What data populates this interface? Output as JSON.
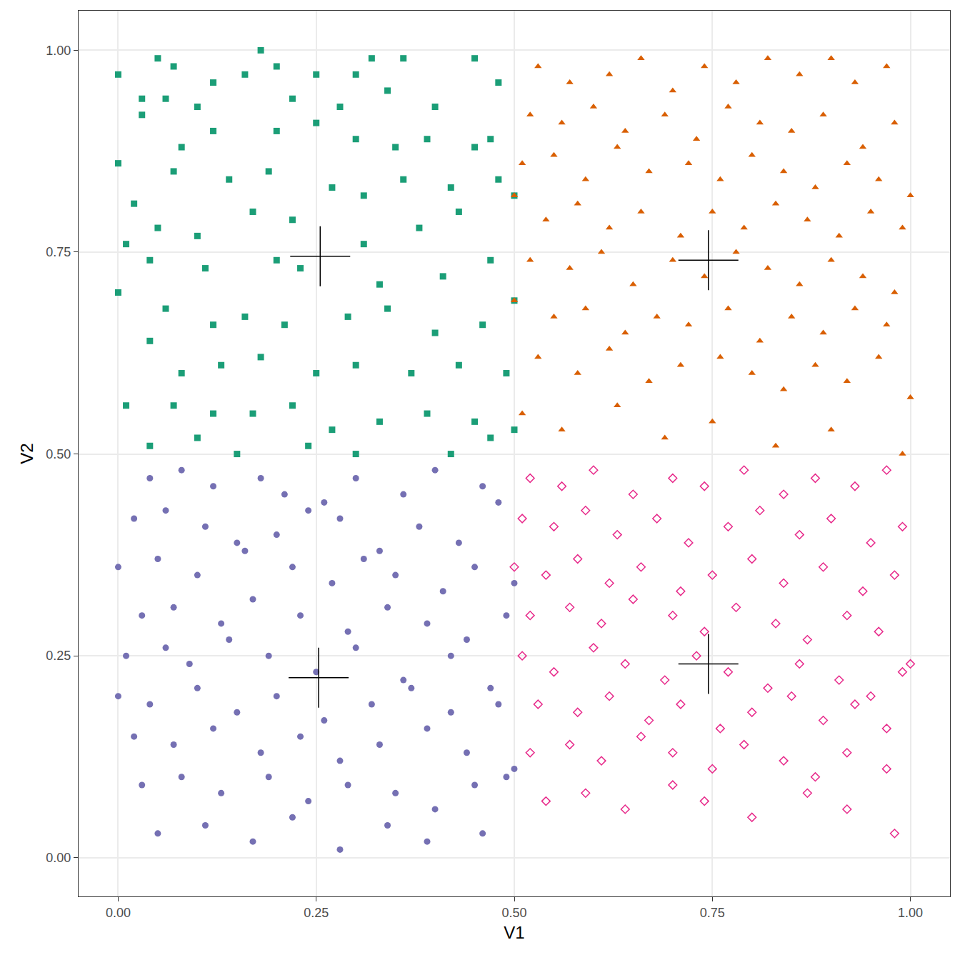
{
  "chart_data": {
    "type": "scatter",
    "x_label": "V1",
    "y_label": "V2",
    "xlim": [
      -0.05,
      1.05
    ],
    "ylim": [
      -0.048,
      1.049
    ],
    "xticks": [
      {
        "value": 0,
        "label": "0.00"
      },
      {
        "value": 0.25,
        "label": "0.25"
      },
      {
        "value": 0.5,
        "label": "0.50"
      },
      {
        "value": 0.75,
        "label": "0.75"
      },
      {
        "value": 1,
        "label": "1.00"
      }
    ],
    "yticks": [
      {
        "value": 0,
        "label": "0.00"
      },
      {
        "value": 0.25,
        "label": "0.25"
      },
      {
        "value": 0.5,
        "label": "0.50"
      },
      {
        "value": 0.75,
        "label": "0.75"
      },
      {
        "value": 1,
        "label": "1.00"
      }
    ],
    "grid": true,
    "series": [
      {
        "color": "#1b9e77",
        "marker": "square",
        "x": [
          0.0,
          0.05,
          0.07,
          0.12,
          0.18,
          0.2,
          0.25,
          0.3,
          0.32,
          0.36,
          0.45,
          0.48,
          0.03,
          0.06,
          0.1,
          0.16,
          0.22,
          0.28,
          0.34,
          0.4,
          0.03,
          0.08,
          0.12,
          0.2,
          0.25,
          0.3,
          0.35,
          0.39,
          0.45,
          0.47,
          0.0,
          0.07,
          0.14,
          0.19,
          0.27,
          0.31,
          0.36,
          0.42,
          0.48,
          0.02,
          0.05,
          0.1,
          0.17,
          0.22,
          0.31,
          0.38,
          0.43,
          0.5,
          0.01,
          0.04,
          0.11,
          0.2,
          0.23,
          0.33,
          0.41,
          0.47,
          0.0,
          0.06,
          0.12,
          0.16,
          0.21,
          0.29,
          0.34,
          0.4,
          0.46,
          0.5,
          0.04,
          0.08,
          0.13,
          0.18,
          0.25,
          0.3,
          0.37,
          0.43,
          0.49,
          0.01,
          0.07,
          0.12,
          0.17,
          0.22,
          0.27,
          0.33,
          0.39,
          0.45,
          0.5,
          0.04,
          0.1,
          0.15,
          0.24,
          0.3,
          0.42,
          0.47
        ],
        "y": [
          0.97,
          0.99,
          0.98,
          0.96,
          1.0,
          0.98,
          0.97,
          0.97,
          0.99,
          0.99,
          0.99,
          0.96,
          0.94,
          0.94,
          0.93,
          0.97,
          0.94,
          0.93,
          0.95,
          0.93,
          0.92,
          0.88,
          0.9,
          0.9,
          0.91,
          0.89,
          0.88,
          0.89,
          0.88,
          0.89,
          0.86,
          0.85,
          0.84,
          0.85,
          0.83,
          0.82,
          0.84,
          0.83,
          0.84,
          0.81,
          0.78,
          0.77,
          0.8,
          0.79,
          0.76,
          0.78,
          0.8,
          0.82,
          0.76,
          0.74,
          0.73,
          0.74,
          0.73,
          0.71,
          0.72,
          0.74,
          0.7,
          0.68,
          0.66,
          0.67,
          0.66,
          0.67,
          0.68,
          0.65,
          0.66,
          0.69,
          0.64,
          0.6,
          0.61,
          0.62,
          0.6,
          0.61,
          0.6,
          0.61,
          0.6,
          0.56,
          0.56,
          0.55,
          0.55,
          0.56,
          0.53,
          0.54,
          0.55,
          0.54,
          0.53,
          0.51,
          0.52,
          0.5,
          0.51,
          0.5,
          0.5,
          0.52
        ]
      },
      {
        "color": "#d95f02",
        "marker": "triangle",
        "x": [
          0.53,
          0.57,
          0.62,
          0.66,
          0.7,
          0.74,
          0.78,
          0.82,
          0.86,
          0.9,
          0.93,
          0.97,
          0.52,
          0.56,
          0.6,
          0.64,
          0.69,
          0.73,
          0.77,
          0.81,
          0.85,
          0.89,
          0.94,
          0.98,
          0.51,
          0.55,
          0.59,
          0.63,
          0.67,
          0.72,
          0.76,
          0.8,
          0.84,
          0.88,
          0.92,
          0.96,
          1.0,
          0.5,
          0.54,
          0.58,
          0.62,
          0.66,
          0.71,
          0.75,
          0.79,
          0.83,
          0.87,
          0.91,
          0.95,
          0.99,
          0.52,
          0.57,
          0.61,
          0.65,
          0.7,
          0.74,
          0.78,
          0.82,
          0.86,
          0.9,
          0.94,
          0.98,
          0.5,
          0.55,
          0.59,
          0.64,
          0.68,
          0.72,
          0.77,
          0.81,
          0.85,
          0.89,
          0.93,
          0.97,
          0.53,
          0.58,
          0.62,
          0.67,
          0.71,
          0.76,
          0.8,
          0.84,
          0.88,
          0.92,
          0.96,
          1.0,
          0.51,
          0.56,
          0.63,
          0.69,
          0.75,
          0.83,
          0.9,
          0.99
        ],
        "y": [
          0.98,
          0.96,
          0.97,
          0.99,
          0.95,
          0.98,
          0.96,
          0.99,
          0.97,
          0.99,
          0.96,
          0.98,
          0.92,
          0.91,
          0.93,
          0.9,
          0.92,
          0.89,
          0.93,
          0.91,
          0.9,
          0.92,
          0.88,
          0.91,
          0.86,
          0.87,
          0.84,
          0.88,
          0.85,
          0.86,
          0.84,
          0.87,
          0.85,
          0.83,
          0.86,
          0.84,
          0.82,
          0.82,
          0.79,
          0.81,
          0.78,
          0.8,
          0.77,
          0.8,
          0.78,
          0.81,
          0.79,
          0.77,
          0.8,
          0.78,
          0.74,
          0.73,
          0.75,
          0.71,
          0.74,
          0.72,
          0.75,
          0.73,
          0.71,
          0.74,
          0.72,
          0.7,
          0.69,
          0.67,
          0.68,
          0.65,
          0.67,
          0.66,
          0.68,
          0.64,
          0.67,
          0.65,
          0.68,
          0.66,
          0.62,
          0.6,
          0.63,
          0.59,
          0.61,
          0.62,
          0.6,
          0.58,
          0.61,
          0.59,
          0.62,
          0.57,
          0.55,
          0.53,
          0.56,
          0.52,
          0.54,
          0.51,
          0.53,
          0.5
        ]
      },
      {
        "color": "#7570b3",
        "marker": "circle",
        "x": [
          0.04,
          0.08,
          0.12,
          0.18,
          0.21,
          0.26,
          0.3,
          0.36,
          0.4,
          0.46,
          0.02,
          0.06,
          0.11,
          0.15,
          0.2,
          0.24,
          0.28,
          0.33,
          0.38,
          0.43,
          0.48,
          0.0,
          0.05,
          0.1,
          0.16,
          0.22,
          0.27,
          0.31,
          0.35,
          0.41,
          0.45,
          0.5,
          0.03,
          0.07,
          0.13,
          0.17,
          0.23,
          0.29,
          0.34,
          0.39,
          0.44,
          0.49,
          0.01,
          0.06,
          0.09,
          0.14,
          0.19,
          0.25,
          0.3,
          0.36,
          0.42,
          0.47,
          0.0,
          0.04,
          0.1,
          0.15,
          0.2,
          0.26,
          0.32,
          0.37,
          0.42,
          0.48,
          0.02,
          0.07,
          0.12,
          0.18,
          0.23,
          0.28,
          0.33,
          0.39,
          0.44,
          0.5,
          0.03,
          0.08,
          0.13,
          0.19,
          0.24,
          0.29,
          0.35,
          0.4,
          0.45,
          0.49,
          0.05,
          0.11,
          0.17,
          0.22,
          0.28,
          0.34,
          0.39,
          0.46
        ],
        "y": [
          0.47,
          0.48,
          0.46,
          0.47,
          0.45,
          0.44,
          0.47,
          0.45,
          0.48,
          0.46,
          0.42,
          0.43,
          0.41,
          0.39,
          0.4,
          0.43,
          0.42,
          0.38,
          0.41,
          0.39,
          0.44,
          0.36,
          0.37,
          0.35,
          0.38,
          0.36,
          0.34,
          0.37,
          0.35,
          0.33,
          0.36,
          0.34,
          0.3,
          0.31,
          0.29,
          0.32,
          0.3,
          0.28,
          0.31,
          0.29,
          0.27,
          0.3,
          0.25,
          0.26,
          0.24,
          0.27,
          0.25,
          0.23,
          0.26,
          0.22,
          0.25,
          0.21,
          0.2,
          0.19,
          0.21,
          0.18,
          0.2,
          0.17,
          0.19,
          0.21,
          0.18,
          0.19,
          0.15,
          0.14,
          0.16,
          0.13,
          0.15,
          0.12,
          0.14,
          0.16,
          0.13,
          0.11,
          0.09,
          0.1,
          0.08,
          0.1,
          0.07,
          0.09,
          0.08,
          0.06,
          0.09,
          0.1,
          0.03,
          0.04,
          0.02,
          0.05,
          0.01,
          0.04,
          0.02,
          0.03
        ]
      },
      {
        "color": "#e7298a",
        "marker": "diamond-open",
        "x": [
          0.52,
          0.56,
          0.6,
          0.65,
          0.7,
          0.74,
          0.79,
          0.84,
          0.88,
          0.93,
          0.97,
          0.51,
          0.55,
          0.59,
          0.63,
          0.68,
          0.72,
          0.77,
          0.81,
          0.86,
          0.9,
          0.95,
          0.99,
          0.5,
          0.54,
          0.58,
          0.62,
          0.66,
          0.71,
          0.75,
          0.8,
          0.84,
          0.89,
          0.94,
          0.98,
          0.52,
          0.57,
          0.61,
          0.65,
          0.7,
          0.74,
          0.78,
          0.83,
          0.87,
          0.92,
          0.96,
          1.0,
          0.51,
          0.55,
          0.6,
          0.64,
          0.69,
          0.73,
          0.77,
          0.82,
          0.86,
          0.91,
          0.95,
          0.99,
          0.53,
          0.58,
          0.62,
          0.67,
          0.71,
          0.76,
          0.8,
          0.85,
          0.89,
          0.93,
          0.97,
          0.52,
          0.57,
          0.61,
          0.66,
          0.7,
          0.75,
          0.79,
          0.84,
          0.88,
          0.92,
          0.97,
          0.54,
          0.59,
          0.64,
          0.7,
          0.74,
          0.8,
          0.87,
          0.92,
          0.98
        ],
        "y": [
          0.47,
          0.46,
          0.48,
          0.45,
          0.47,
          0.46,
          0.48,
          0.45,
          0.47,
          0.46,
          0.48,
          0.42,
          0.41,
          0.43,
          0.4,
          0.42,
          0.39,
          0.41,
          0.43,
          0.4,
          0.42,
          0.39,
          0.41,
          0.36,
          0.35,
          0.37,
          0.34,
          0.36,
          0.33,
          0.35,
          0.37,
          0.34,
          0.36,
          0.33,
          0.35,
          0.3,
          0.31,
          0.29,
          0.32,
          0.3,
          0.28,
          0.31,
          0.29,
          0.27,
          0.3,
          0.28,
          0.24,
          0.25,
          0.23,
          0.26,
          0.24,
          0.22,
          0.25,
          0.23,
          0.21,
          0.24,
          0.22,
          0.2,
          0.23,
          0.19,
          0.18,
          0.2,
          0.17,
          0.19,
          0.16,
          0.18,
          0.2,
          0.17,
          0.19,
          0.16,
          0.13,
          0.14,
          0.12,
          0.15,
          0.13,
          0.11,
          0.14,
          0.12,
          0.1,
          0.13,
          0.11,
          0.07,
          0.08,
          0.06,
          0.09,
          0.07,
          0.05,
          0.08,
          0.06,
          0.03
        ]
      },
      {
        "color": "#000000",
        "marker": "cross",
        "x": [
          0.255,
          0.745,
          0.253,
          0.745
        ],
        "y": [
          0.745,
          0.74,
          0.223,
          0.24
        ]
      }
    ]
  }
}
